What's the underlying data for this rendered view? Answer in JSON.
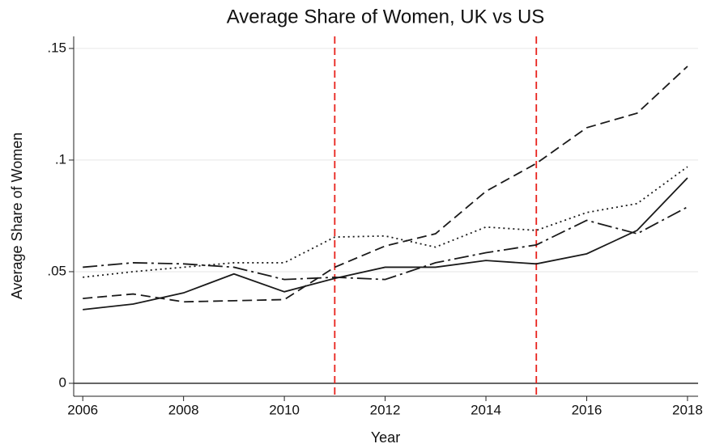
{
  "chart_data": {
    "type": "line",
    "title": "Average Share of Women, UK vs US",
    "xlabel": "Year",
    "ylabel": "Average Share of Women",
    "x": [
      2006,
      2007,
      2008,
      2009,
      2010,
      2011,
      2012,
      2013,
      2014,
      2015,
      2016,
      2017,
      2018
    ],
    "series": [
      {
        "color": "#1a1a1a",
        "style": "solid",
        "values": [
          0.033,
          0.0355,
          0.0405,
          0.049,
          0.041,
          0.047,
          0.052,
          0.052,
          0.055,
          0.0535,
          0.058,
          0.0685,
          0.092
        ]
      },
      {
        "color": "#1a1a1a",
        "style": "dashed",
        "values": [
          0.038,
          0.04,
          0.0365,
          0.037,
          0.0375,
          0.052,
          0.0615,
          0.067,
          0.086,
          0.0985,
          0.1145,
          0.121,
          0.142
        ]
      },
      {
        "color": "#1a1a1a",
        "style": "dotted",
        "values": [
          0.0475,
          0.05,
          0.052,
          0.054,
          0.054,
          0.0655,
          0.066,
          0.061,
          0.07,
          0.0685,
          0.0765,
          0.0805,
          0.097
        ]
      },
      {
        "color": "#1a1a1a",
        "style": "longdashdot",
        "values": [
          0.052,
          0.054,
          0.0535,
          0.052,
          0.0465,
          0.0475,
          0.0465,
          0.054,
          0.0585,
          0.062,
          0.073,
          0.067,
          0.079
        ]
      }
    ],
    "xlim": [
      2005.82,
      2018.21
    ],
    "xticks": [
      2006,
      2008,
      2010,
      2012,
      2014,
      2016,
      2018
    ],
    "ylim": [
      -0.0058,
      0.1554
    ],
    "yticks": [
      0,
      {
        "value": 0.05,
        "label": ".05"
      },
      {
        "value": 0.1,
        "label": ".1"
      },
      {
        "value": 0.15,
        "label": ".15"
      }
    ],
    "grid": true,
    "vlines": [
      2011,
      2015
    ],
    "vline_color": "#e8221c"
  }
}
